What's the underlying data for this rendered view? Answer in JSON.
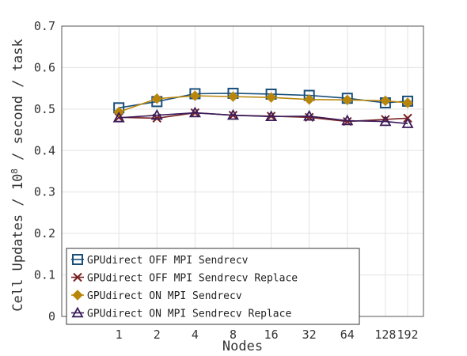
{
  "chart_data": {
    "type": "line",
    "xlabel": "Nodes",
    "ylabel_parts": [
      "Cell Updates / 10",
      "8",
      " / second / task"
    ],
    "categories": [
      "1",
      "2",
      "4",
      "8",
      "16",
      "32",
      "64",
      "128",
      "192"
    ],
    "x_values": [
      1,
      2,
      4,
      8,
      16,
      32,
      64,
      128,
      192
    ],
    "x_scale": "log2",
    "ylim": [
      0,
      0.7
    ],
    "yticks": [
      "0",
      "0.1",
      "0.2",
      "0.3",
      "0.4",
      "0.5",
      "0.6",
      "0.7"
    ],
    "grid": true,
    "legend_position": "bottom-left",
    "series": [
      {
        "name": "GPUdirect OFF MPI Sendrecv",
        "color": "#1a4f7a",
        "marker": "square",
        "values": [
          0.503,
          0.518,
          0.537,
          0.538,
          0.536,
          0.533,
          0.526,
          0.515,
          0.519
        ]
      },
      {
        "name": "GPUdirect OFF MPI Sendrecv Replace",
        "color": "#7a2222",
        "marker": "x",
        "values": [
          0.48,
          0.478,
          0.491,
          0.485,
          0.483,
          0.48,
          0.47,
          0.475,
          0.478
        ]
      },
      {
        "name": "GPUdirect ON MPI Sendrecv",
        "color": "#b8860b",
        "marker": "diamond",
        "values": [
          0.493,
          0.525,
          0.532,
          0.53,
          0.528,
          0.523,
          0.522,
          0.52,
          0.515
        ]
      },
      {
        "name": "GPUdirect ON MPI Sendrecv Replace",
        "color": "#3a1c5c",
        "marker": "triangle",
        "values": [
          0.479,
          0.485,
          0.491,
          0.485,
          0.482,
          0.483,
          0.472,
          0.47,
          0.465
        ]
      }
    ]
  }
}
